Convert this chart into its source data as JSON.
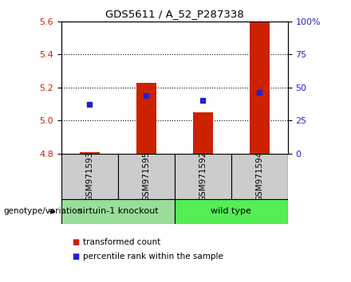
{
  "title": "GDS5611 / A_52_P287338",
  "samples": [
    "GSM971593",
    "GSM971595",
    "GSM971592",
    "GSM971594"
  ],
  "bar_values": [
    4.81,
    5.23,
    5.05,
    5.6
  ],
  "blue_dot_values": [
    5.1,
    5.15,
    5.12,
    5.17
  ],
  "bar_bottom": 4.8,
  "ylim": [
    4.8,
    5.6
  ],
  "yticks_left": [
    4.8,
    5.0,
    5.2,
    5.4,
    5.6
  ],
  "yticks_right": [
    0,
    25,
    50,
    75,
    100
  ],
  "bar_color": "#cc2200",
  "dot_color": "#2222cc",
  "group1_label": "sirtuin-1 knockout",
  "group2_label": "wild type",
  "group1_color": "#99dd99",
  "group2_color": "#55ee55",
  "group1_samples": [
    0,
    1
  ],
  "group2_samples": [
    2,
    3
  ],
  "genotype_label": "genotype/variation",
  "legend_red": "transformed count",
  "legend_blue": "percentile rank within the sample",
  "bar_width": 0.35,
  "sample_box_color": "#cccccc",
  "fig_bg": "#ffffff"
}
